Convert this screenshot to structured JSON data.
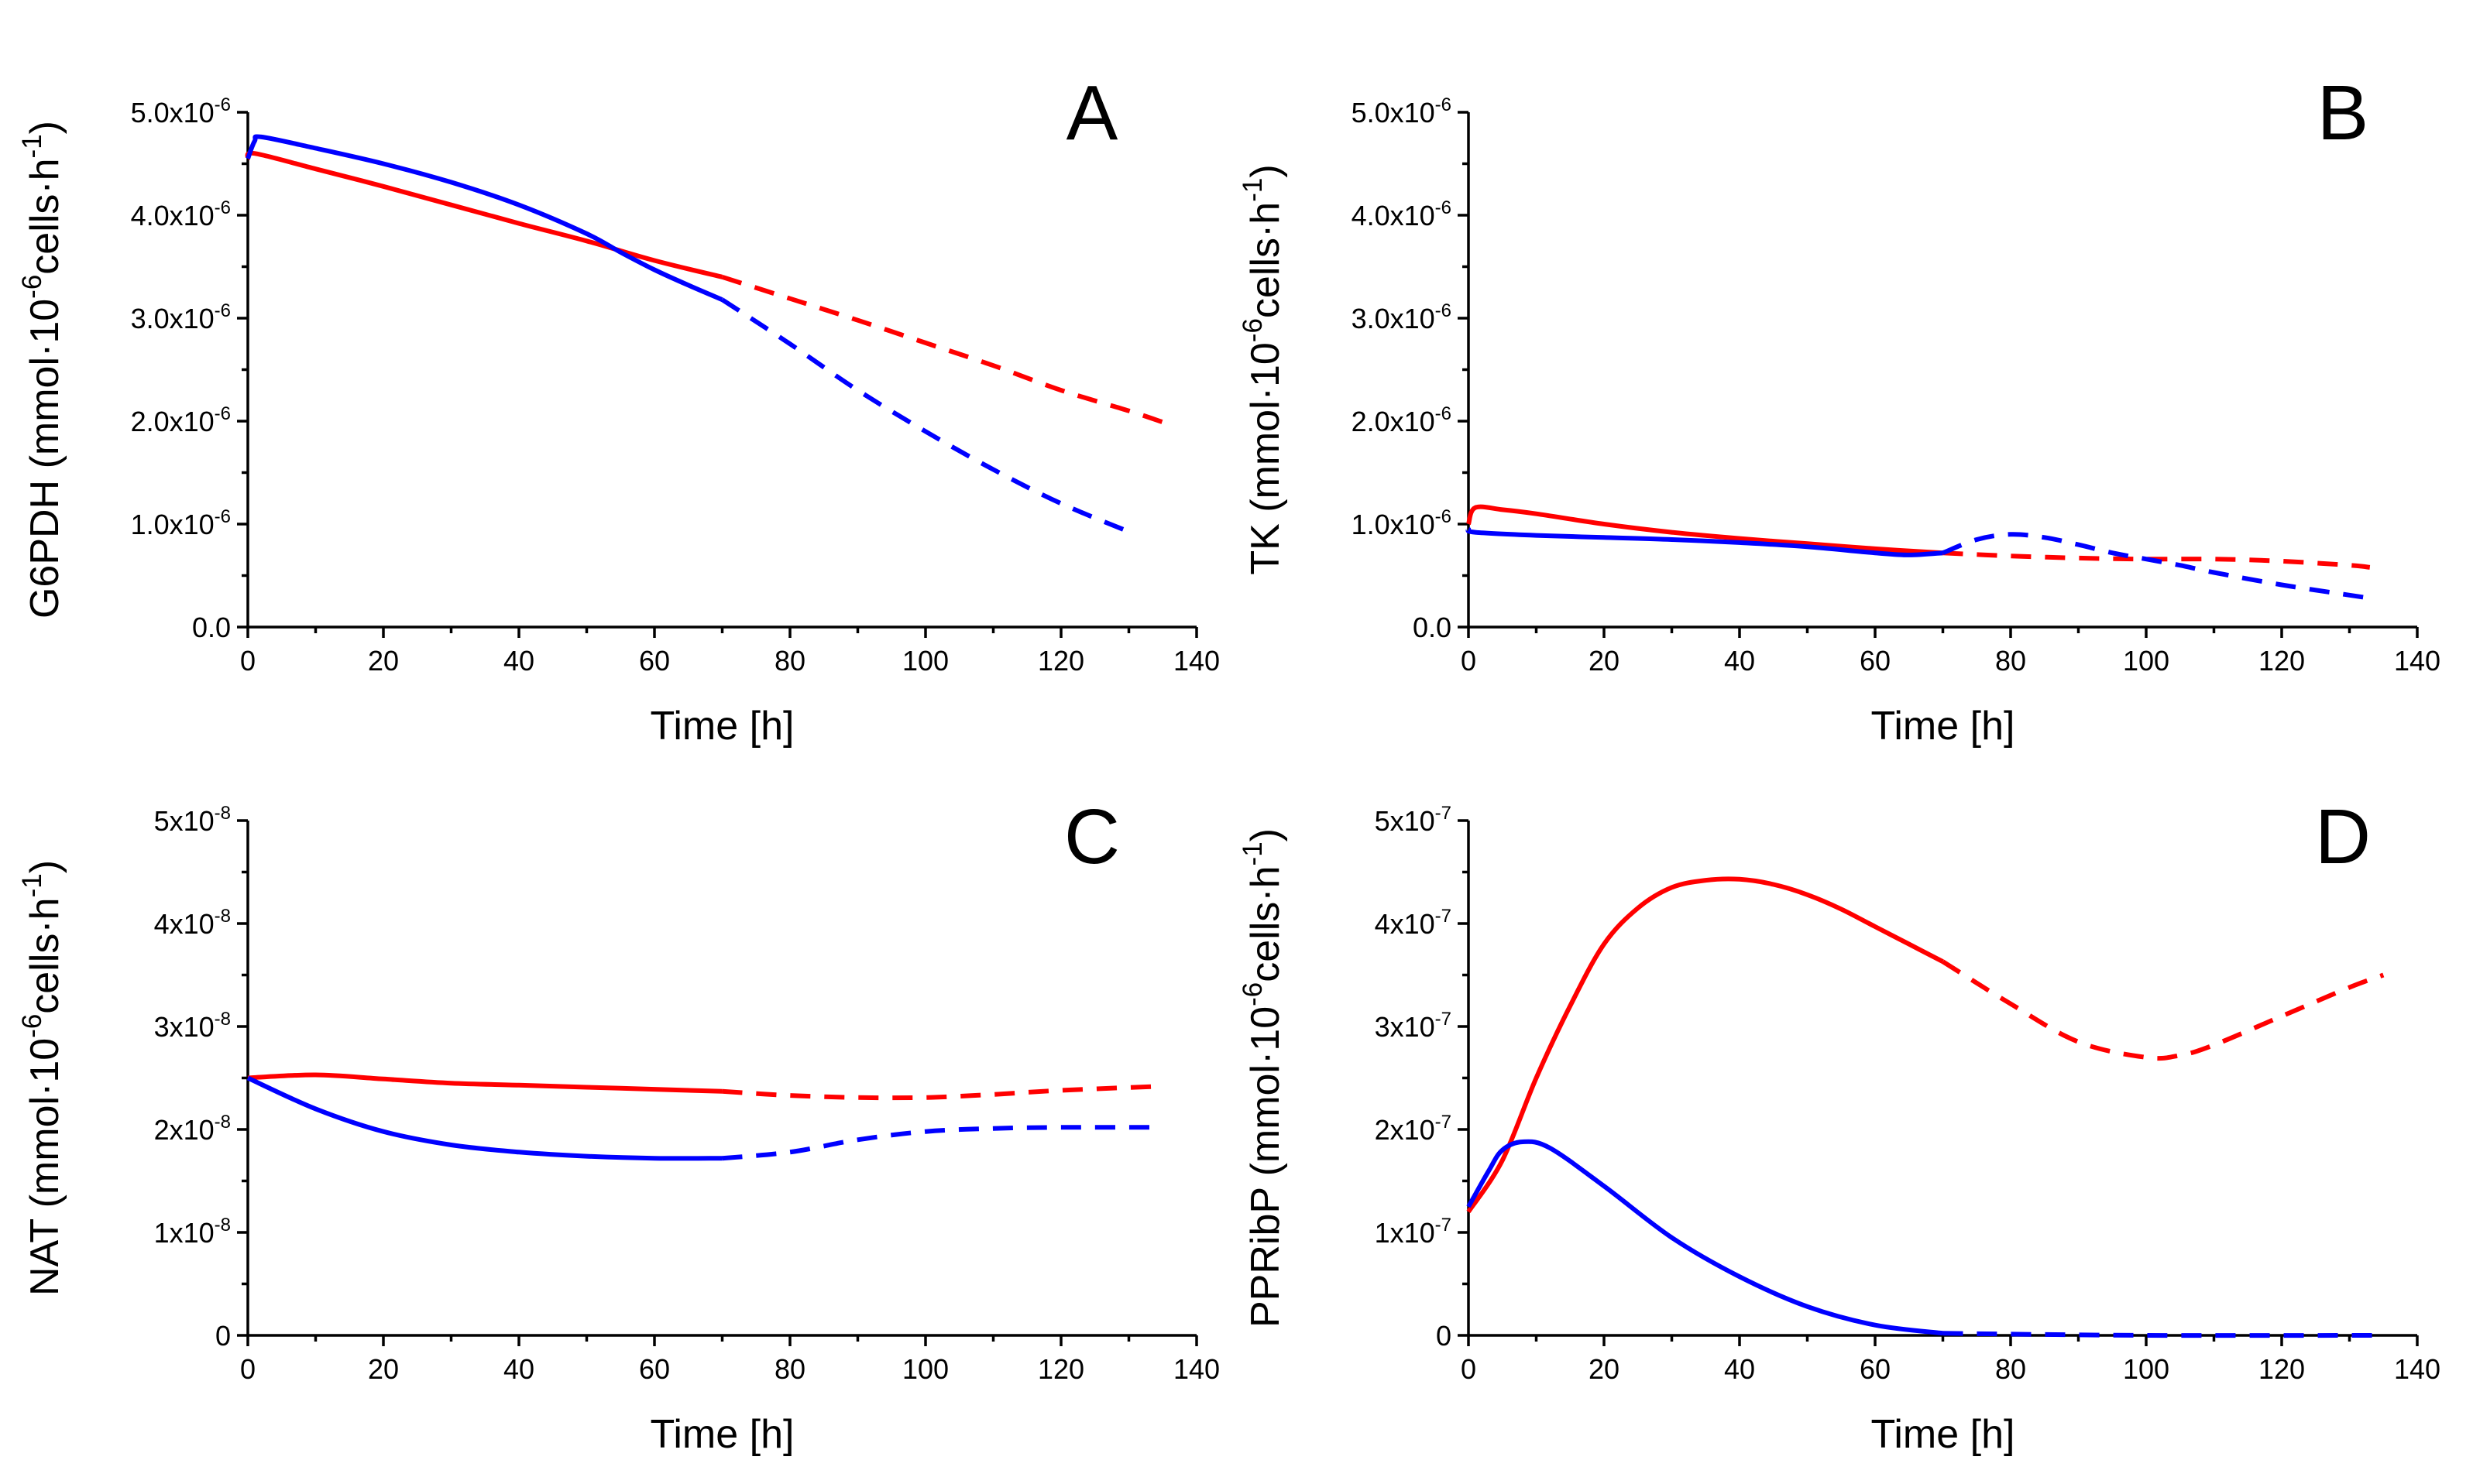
{
  "colors": {
    "series1": "#ff0000",
    "series2": "#0000ff",
    "axis": "#000000"
  },
  "chart_data": [
    {
      "type": "line",
      "panel": "A",
      "ylabel": "G6PDH (mmol·10⁻⁶cells·h⁻¹)",
      "xlabel": "Time [h]",
      "xlim": [
        0,
        140
      ],
      "ylim": [
        0,
        5e-06
      ],
      "xticks": [
        0,
        20,
        40,
        60,
        80,
        100,
        120,
        140
      ],
      "xtick_labels": [
        "0",
        "20",
        "40",
        "60",
        "80",
        "100",
        "120",
        "140"
      ],
      "yticks": [
        0,
        1e-06,
        2e-06,
        3e-06,
        4e-06,
        5e-06
      ],
      "ytick_labels": [
        "0.0",
        "1.0x10⁻⁶",
        "2.0x10⁻⁶",
        "3.0x10⁻⁶",
        "4.0x10⁻⁶",
        "5.0x10⁻⁶"
      ],
      "series": [
        {
          "name": "red-measured",
          "color": "series1",
          "style": "solid",
          "x": [
            0,
            1,
            10,
            20,
            30,
            40,
            50,
            60,
            70
          ],
          "y": [
            4.55e-06,
            4.6e-06,
            4.45e-06,
            4.28e-06,
            4.1e-06,
            3.92e-06,
            3.75e-06,
            3.56e-06,
            3.4e-06
          ]
        },
        {
          "name": "red-predicted",
          "color": "series1",
          "style": "dashed",
          "x": [
            70,
            80,
            90,
            100,
            110,
            120,
            130,
            135
          ],
          "y": [
            3.4e-06,
            3.19e-06,
            2.98e-06,
            2.76e-06,
            2.54e-06,
            2.3e-06,
            2.1e-06,
            1.99e-06
          ]
        },
        {
          "name": "blue-measured",
          "color": "series2",
          "style": "solid",
          "x": [
            0,
            1,
            2,
            10,
            20,
            30,
            40,
            50,
            55,
            60,
            65,
            70
          ],
          "y": [
            4.55e-06,
            4.72e-06,
            4.76e-06,
            4.65e-06,
            4.5e-06,
            4.32e-06,
            4.1e-06,
            3.82e-06,
            3.64e-06,
            3.47e-06,
            3.32e-06,
            3.18e-06
          ]
        },
        {
          "name": "blue-predicted",
          "color": "series2",
          "style": "dashed",
          "x": [
            70,
            80,
            90,
            100,
            110,
            120,
            131
          ],
          "y": [
            3.18e-06,
            2.75e-06,
            2.3e-06,
            1.9e-06,
            1.53e-06,
            1.2e-06,
            9e-07
          ]
        }
      ]
    },
    {
      "type": "line",
      "panel": "B",
      "ylabel": "TK (mmol·10⁻⁶cells·h⁻¹)",
      "xlabel": "Time [h]",
      "xlim": [
        0,
        140
      ],
      "ylim": [
        0,
        5e-06
      ],
      "xticks": [
        0,
        20,
        40,
        60,
        80,
        100,
        120,
        140
      ],
      "xtick_labels": [
        "0",
        "20",
        "40",
        "60",
        "80",
        "100",
        "120",
        "140"
      ],
      "yticks": [
        0,
        1e-06,
        2e-06,
        3e-06,
        4e-06,
        5e-06
      ],
      "ytick_labels": [
        "0.0",
        "1.0x10⁻⁶",
        "2.0x10⁻⁶",
        "3.0x10⁻⁶",
        "4.0x10⁻⁶",
        "5.0x10⁻⁶"
      ],
      "series": [
        {
          "name": "red-measured",
          "color": "series1",
          "style": "solid",
          "x": [
            0,
            1,
            5,
            10,
            20,
            30,
            40,
            50,
            60,
            70
          ],
          "y": [
            1e-06,
            1.16e-06,
            1.14e-06,
            1.1e-06,
            1e-06,
            9.2e-07,
            8.6e-07,
            8.1e-07,
            7.6e-07,
            7.2e-07
          ]
        },
        {
          "name": "red-predicted",
          "color": "series1",
          "style": "dashed",
          "x": [
            70,
            80,
            90,
            100,
            110,
            120,
            130,
            133
          ],
          "y": [
            7.2e-07,
            6.9e-07,
            6.7e-07,
            6.6e-07,
            6.6e-07,
            6.4e-07,
            6e-07,
            5.8e-07
          ]
        },
        {
          "name": "blue-measured",
          "color": "series2",
          "style": "solid",
          "x": [
            0,
            1,
            10,
            20,
            30,
            40,
            50,
            60,
            65,
            70
          ],
          "y": [
            9.5e-07,
            9.2e-07,
            8.9e-07,
            8.7e-07,
            8.5e-07,
            8.2e-07,
            7.8e-07,
            7.2e-07,
            7e-07,
            7.2e-07
          ]
        },
        {
          "name": "blue-predicted",
          "color": "series2",
          "style": "dashed",
          "x": [
            70,
            75,
            80,
            85,
            90,
            95,
            100,
            105,
            110,
            120,
            130,
            133
          ],
          "y": [
            7.2e-07,
            8.5e-07,
            9e-07,
            8.7e-07,
            8e-07,
            7.2e-07,
            6.6e-07,
            6e-07,
            5.3e-07,
            4.1e-07,
            3.1e-07,
            2.8e-07
          ]
        }
      ]
    },
    {
      "type": "line",
      "panel": "C",
      "ylabel": "NAT (mmol·10⁻⁶cells·h⁻¹)",
      "xlabel": "Time [h]",
      "xlim": [
        0,
        140
      ],
      "ylim": [
        0,
        5e-08
      ],
      "xticks": [
        0,
        20,
        40,
        60,
        80,
        100,
        120,
        140
      ],
      "xtick_labels": [
        "0",
        "20",
        "40",
        "60",
        "80",
        "100",
        "120",
        "140"
      ],
      "yticks": [
        0,
        1e-08,
        2e-08,
        3e-08,
        4e-08,
        5e-08
      ],
      "ytick_labels": [
        "0",
        "1x10⁻⁸",
        "2x10⁻⁸",
        "3x10⁻⁸",
        "4x10⁻⁸",
        "5x10⁻⁸"
      ],
      "series": [
        {
          "name": "red-measured",
          "color": "series1",
          "style": "solid",
          "x": [
            0,
            10,
            20,
            30,
            40,
            50,
            60,
            70
          ],
          "y": [
            2.5e-08,
            2.53e-08,
            2.49e-08,
            2.45e-08,
            2.43e-08,
            2.41e-08,
            2.39e-08,
            2.37e-08
          ]
        },
        {
          "name": "red-predicted",
          "color": "series1",
          "style": "dashed",
          "x": [
            70,
            80,
            90,
            100,
            110,
            120,
            135
          ],
          "y": [
            2.37e-08,
            2.33e-08,
            2.31e-08,
            2.31e-08,
            2.34e-08,
            2.38e-08,
            2.42e-08
          ]
        },
        {
          "name": "blue-measured",
          "color": "series2",
          "style": "solid",
          "x": [
            0,
            10,
            20,
            30,
            40,
            50,
            60,
            70
          ],
          "y": [
            2.5e-08,
            2.2e-08,
            1.98e-08,
            1.85e-08,
            1.78e-08,
            1.74e-08,
            1.72e-08,
            1.72e-08
          ]
        },
        {
          "name": "blue-predicted",
          "color": "series2",
          "style": "dashed",
          "x": [
            70,
            80,
            90,
            100,
            110,
            120,
            134
          ],
          "y": [
            1.72e-08,
            1.78e-08,
            1.9e-08,
            1.98e-08,
            2.01e-08,
            2.02e-08,
            2.02e-08
          ]
        }
      ]
    },
    {
      "type": "line",
      "panel": "D",
      "ylabel": "PPRibP (mmol·10⁻⁶cells·h⁻¹)",
      "xlabel": "Time [h]",
      "xlim": [
        0,
        140
      ],
      "ylim": [
        0,
        5e-07
      ],
      "xticks": [
        0,
        20,
        40,
        60,
        80,
        100,
        120,
        140
      ],
      "xtick_labels": [
        "0",
        "20",
        "40",
        "60",
        "80",
        "100",
        "120",
        "140"
      ],
      "yticks": [
        0,
        1e-07,
        2e-07,
        3e-07,
        4e-07,
        5e-07
      ],
      "ytick_labels": [
        "0",
        "1x10⁻⁷",
        "2x10⁻⁷",
        "3x10⁻⁷",
        "4x10⁻⁷",
        "5x10⁻⁷"
      ],
      "series": [
        {
          "name": "red-measured",
          "color": "series1",
          "style": "solid",
          "x": [
            0,
            5,
            10,
            15,
            20,
            25,
            30,
            35,
            40,
            45,
            50,
            55,
            60,
            65,
            70
          ],
          "y": [
            1.2e-07,
            1.7e-07,
            2.5e-07,
            3.2e-07,
            3.8e-07,
            4.15e-07,
            4.35e-07,
            4.42e-07,
            4.43e-07,
            4.38e-07,
            4.28e-07,
            4.14e-07,
            3.97e-07,
            3.8e-07,
            3.63e-07
          ]
        },
        {
          "name": "red-predicted",
          "color": "series1",
          "style": "dashed",
          "x": [
            70,
            80,
            90,
            100,
            105,
            110,
            120,
            130,
            135
          ],
          "y": [
            3.63e-07,
            3.22e-07,
            2.85e-07,
            2.7e-07,
            2.72e-07,
            2.82e-07,
            3.1e-07,
            3.38e-07,
            3.5e-07
          ]
        },
        {
          "name": "blue-measured",
          "color": "series2",
          "style": "solid",
          "x": [
            0,
            3,
            5,
            8,
            12,
            20,
            30,
            40,
            50,
            60,
            70
          ],
          "y": [
            1.25e-07,
            1.6e-07,
            1.8e-07,
            1.88e-07,
            1.82e-07,
            1.45e-07,
            9.5e-08,
            5.7e-08,
            2.8e-08,
            1e-08,
            2e-09
          ]
        },
        {
          "name": "blue-predicted",
          "color": "series2",
          "style": "dashed",
          "x": [
            70,
            100,
            134
          ],
          "y": [
            2e-09,
            0.0,
            0.0
          ]
        }
      ]
    }
  ]
}
